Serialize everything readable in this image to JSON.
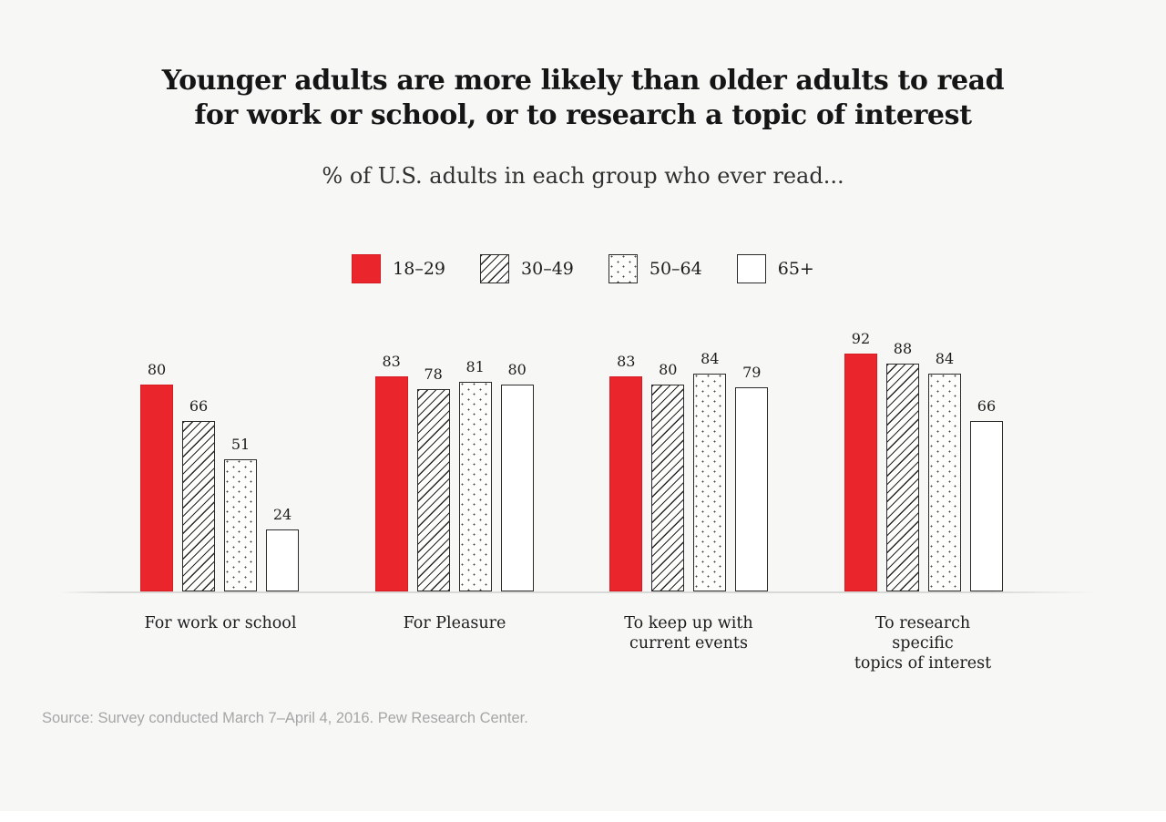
{
  "title": {
    "line1": "Younger adults are more likely than older adults to read",
    "line2": "for work or school, or to research a topic of interest"
  },
  "subtitle": "% of U.S. adults in each group who ever read...",
  "legend": [
    {
      "key": "18-29",
      "label": "18–29",
      "pattern": "solid"
    },
    {
      "key": "30-49",
      "label": "30–49",
      "pattern": "hatch"
    },
    {
      "key": "50-64",
      "label": "50–64",
      "pattern": "dots"
    },
    {
      "key": "65plus",
      "label": "65+",
      "pattern": "plain"
    }
  ],
  "category_labels_display": [
    "For work or school",
    "For Pleasure",
    "To keep up with\ncurrent events",
    "To research specific\ntopics of interest"
  ],
  "source": "Source: Survey conducted March 7–April 4, 2016. Pew Research Center.",
  "colors": {
    "accent_red": "#ea252b",
    "red_border": "#d51c23",
    "bar_border": "#2b2b2b",
    "background": "#f7f7f5",
    "baseline": "#d8d8d6",
    "title_text": "#151515",
    "source_text": "#a6a6a6"
  },
  "chart_data": {
    "type": "bar",
    "title": "Younger adults are more likely than older adults to read for work or school, or to research a topic of interest",
    "subtitle": "% of U.S. adults in each group who ever read...",
    "categories": [
      "For work or school",
      "For Pleasure",
      "To keep up with current events",
      "To research specific topics of interest"
    ],
    "series": [
      {
        "name": "18–29",
        "values": [
          80,
          83,
          83,
          92
        ]
      },
      {
        "name": "30–49",
        "values": [
          66,
          78,
          80,
          88
        ]
      },
      {
        "name": "50–64",
        "values": [
          51,
          81,
          84,
          84
        ]
      },
      {
        "name": "65+",
        "values": [
          24,
          80,
          79,
          66
        ]
      }
    ],
    "ylim": [
      0,
      100
    ],
    "value_labels": true,
    "grid": false,
    "legend_position": "top"
  }
}
